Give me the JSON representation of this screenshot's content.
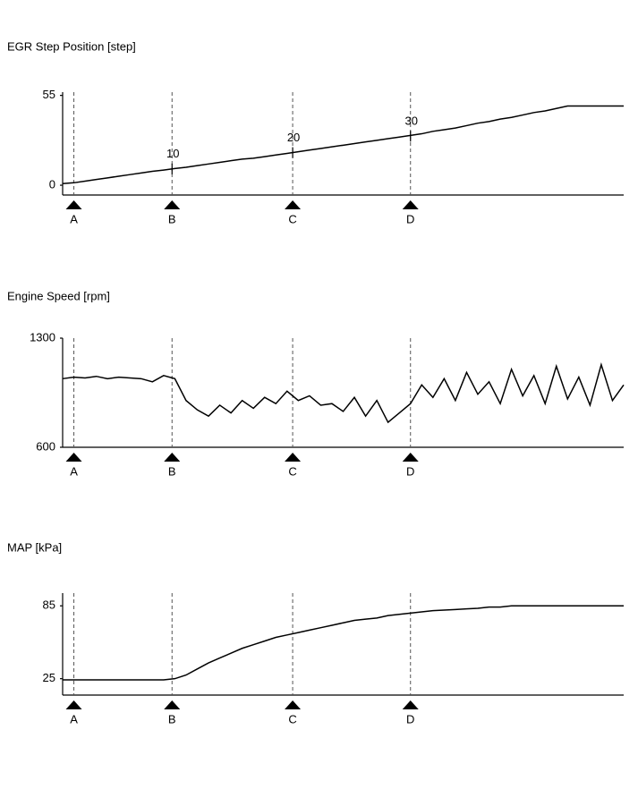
{
  "chart_data": [
    {
      "type": "line",
      "title": "EGR Step Position [step]",
      "ylim": [
        -6,
        57
      ],
      "yticks": [
        0,
        55
      ],
      "xlim": [
        0,
        100
      ],
      "x": [
        0,
        2,
        4,
        6,
        8,
        10,
        12,
        14,
        16,
        18,
        20,
        22,
        24,
        26,
        28,
        30,
        32,
        34,
        36,
        38,
        40,
        42,
        44,
        46,
        48,
        50,
        52,
        54,
        56,
        58,
        60,
        62,
        64,
        66,
        68,
        70,
        72,
        74,
        76,
        78,
        80,
        82,
        84,
        86,
        88,
        90,
        92,
        94,
        96,
        98,
        100
      ],
      "values": [
        1,
        1.5,
        2.5,
        3.5,
        4.5,
        5.5,
        6.5,
        7.5,
        8.5,
        9.3,
        10.2,
        11,
        12,
        13,
        14,
        15,
        16,
        16.5,
        17.5,
        18.5,
        19.5,
        20.5,
        21.5,
        22.5,
        23.5,
        24.5,
        25.5,
        26.5,
        27.5,
        28.5,
        29.5,
        30.5,
        31.5,
        33,
        34,
        35,
        36.5,
        38,
        39,
        40.5,
        41.5,
        43,
        44.5,
        45.5,
        47,
        48.5,
        48.5,
        48.5,
        48.5,
        48.5,
        48.5
      ],
      "markers": [
        {
          "x": 2,
          "label": "A"
        },
        {
          "x": 19.5,
          "label": "B"
        },
        {
          "x": 41,
          "label": "C"
        },
        {
          "x": 62,
          "label": "D"
        }
      ],
      "annotations": [
        {
          "x": 19.5,
          "y": 10,
          "label": "10"
        },
        {
          "x": 41,
          "y": 20,
          "label": "20"
        },
        {
          "x": 62,
          "y": 30,
          "label": "30"
        }
      ]
    },
    {
      "type": "line",
      "title": "Engine Speed [rpm]",
      "ylim": [
        600,
        1300
      ],
      "yticks": [
        600,
        1300
      ],
      "xlim": [
        0,
        100
      ],
      "x": [
        0,
        2,
        4,
        6,
        8,
        10,
        12,
        14,
        16,
        18,
        20,
        22,
        24,
        26,
        28,
        30,
        32,
        34,
        36,
        38,
        40,
        42,
        44,
        46,
        48,
        50,
        52,
        54,
        56,
        58,
        60,
        62,
        64,
        66,
        68,
        70,
        72,
        74,
        76,
        78,
        80,
        82,
        84,
        86,
        88,
        90,
        92,
        94,
        96,
        98,
        100
      ],
      "values": [
        1040,
        1050,
        1045,
        1055,
        1040,
        1050,
        1045,
        1040,
        1020,
        1060,
        1040,
        900,
        840,
        800,
        870,
        820,
        900,
        850,
        920,
        880,
        960,
        900,
        930,
        870,
        880,
        830,
        920,
        800,
        900,
        760,
        820,
        880,
        1000,
        920,
        1040,
        900,
        1080,
        940,
        1020,
        880,
        1100,
        930,
        1060,
        880,
        1120,
        910,
        1050,
        870,
        1130,
        900,
        1000
      ],
      "markers": [
        {
          "x": 2,
          "label": "A"
        },
        {
          "x": 19.5,
          "label": "B"
        },
        {
          "x": 41,
          "label": "C"
        },
        {
          "x": 62,
          "label": "D"
        }
      ]
    },
    {
      "type": "line",
      "title": "MAP [kPa]",
      "ylim": [
        11.5,
        95.5
      ],
      "yticks": [
        25,
        85
      ],
      "xlim": [
        0,
        100
      ],
      "x": [
        0,
        2,
        4,
        6,
        8,
        10,
        12,
        14,
        16,
        18,
        20,
        22,
        24,
        26,
        28,
        30,
        32,
        34,
        36,
        38,
        40,
        42,
        44,
        46,
        48,
        50,
        52,
        54,
        56,
        58,
        60,
        62,
        64,
        66,
        68,
        70,
        72,
        74,
        76,
        78,
        80,
        82,
        84,
        86,
        88,
        90,
        92,
        94,
        96,
        98,
        100
      ],
      "values": [
        24,
        24,
        24,
        24,
        24,
        24,
        24,
        24,
        24,
        24,
        25,
        28,
        33,
        38,
        42,
        46,
        50,
        53,
        56,
        59,
        61,
        63,
        65,
        67,
        69,
        71,
        73,
        74,
        75,
        77,
        78,
        79,
        80,
        81,
        81.5,
        82,
        82.5,
        83,
        84,
        84,
        85,
        85,
        85,
        85,
        85,
        85,
        85,
        85,
        85,
        85,
        85
      ],
      "markers": [
        {
          "x": 2,
          "label": "A"
        },
        {
          "x": 19.5,
          "label": "B"
        },
        {
          "x": 41,
          "label": "C"
        },
        {
          "x": 62,
          "label": "D"
        }
      ]
    }
  ]
}
